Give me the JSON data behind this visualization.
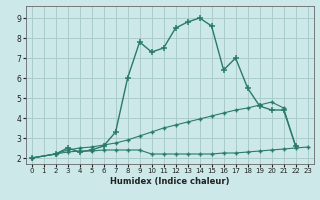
{
  "xlabel": "Humidex (Indice chaleur)",
  "bg_color": "#cce8e8",
  "grid_color": "#aacccc",
  "line_color": "#2a7a6a",
  "xlim": [
    -0.5,
    23.5
  ],
  "ylim": [
    1.7,
    9.6
  ],
  "xticks": [
    0,
    1,
    2,
    3,
    4,
    5,
    6,
    7,
    8,
    9,
    10,
    11,
    12,
    13,
    14,
    15,
    16,
    17,
    18,
    19,
    20,
    21,
    22,
    23
  ],
  "yticks": [
    2,
    3,
    4,
    5,
    6,
    7,
    8,
    9
  ],
  "line0_x": [
    0,
    2,
    3,
    4,
    5,
    6,
    7,
    8,
    9,
    10,
    11,
    12,
    13,
    14,
    15,
    16,
    17,
    18,
    19,
    20,
    21,
    22
  ],
  "line0_y": [
    2,
    2.2,
    2.5,
    2.3,
    2.4,
    2.6,
    3.3,
    6.0,
    7.8,
    7.3,
    7.5,
    8.5,
    8.8,
    9.0,
    8.6,
    6.4,
    7.0,
    5.5,
    4.6,
    4.4,
    4.4,
    2.6
  ],
  "line1_x": [
    0,
    2,
    3,
    4,
    5,
    6,
    7,
    8,
    9,
    10,
    11,
    12,
    13,
    14,
    15,
    16,
    17,
    18,
    19,
    20,
    21,
    22
  ],
  "line1_y": [
    2,
    2.2,
    2.4,
    2.5,
    2.55,
    2.65,
    2.75,
    2.9,
    3.1,
    3.3,
    3.5,
    3.65,
    3.8,
    3.95,
    4.1,
    4.25,
    4.4,
    4.5,
    4.65,
    4.8,
    4.5,
    2.6
  ],
  "line2_x": [
    0,
    2,
    3,
    4,
    5,
    6,
    7,
    8,
    9,
    10,
    11,
    12,
    13,
    14,
    15,
    16,
    17,
    18,
    19,
    20,
    21,
    22,
    23
  ],
  "line2_y": [
    2,
    2.2,
    2.3,
    2.35,
    2.35,
    2.4,
    2.4,
    2.4,
    2.4,
    2.2,
    2.2,
    2.2,
    2.2,
    2.2,
    2.2,
    2.25,
    2.25,
    2.3,
    2.35,
    2.4,
    2.45,
    2.5,
    2.55
  ]
}
